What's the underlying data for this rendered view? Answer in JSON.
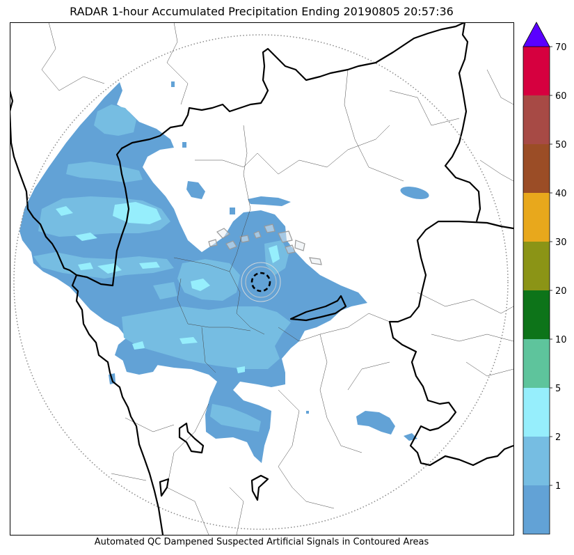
{
  "title": "RADAR 1-hour Accumulated Precipitation Ending 20190805 20:57:36",
  "caption": "Automated QC Dampened Suspected Artificial Signals in Contoured Areas",
  "colorbar": {
    "ticks": [
      "1",
      "2",
      "5",
      "10",
      "20",
      "30",
      "40",
      "50",
      "60",
      "70"
    ],
    "colors": [
      "#62a2d6",
      "#76bde2",
      "#96eefc",
      "#5ec49c",
      "#0d7419",
      "#8b9416",
      "#e8a81c",
      "#9b4d26",
      "#a74a45",
      "#d6003f"
    ],
    "extend_color": "#5a00ff"
  }
}
